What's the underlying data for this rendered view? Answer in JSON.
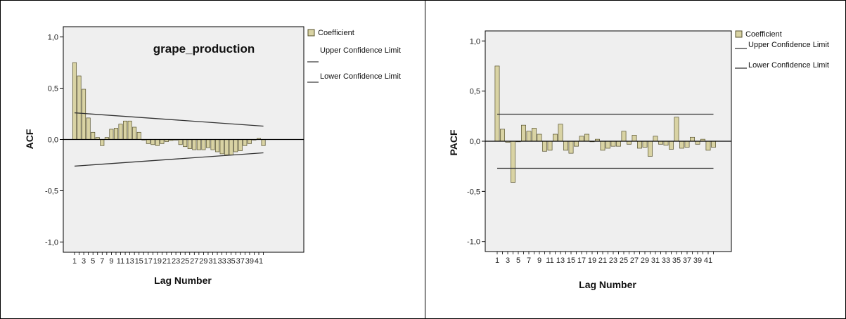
{
  "colors": {
    "bar_fill": "#d9d3a4",
    "bar_stroke": "#55502c",
    "plot_bg": "#efefef",
    "limit_line": "#333333"
  },
  "chart_data": [
    {
      "type": "bar",
      "title": "grape_production",
      "xlabel": "Lag Number",
      "ylabel": "ACF",
      "ylim": [
        -1.1,
        1.1
      ],
      "yticks": [
        "1,0",
        "0,5",
        "0,0",
        "-0,5",
        "-1,0"
      ],
      "x_tick_labels": [
        "1",
        "3",
        "5",
        "7",
        "9",
        "11",
        "13",
        "15",
        "17",
        "19",
        "21",
        "23",
        "25",
        "27",
        "29",
        "31",
        "33",
        "35",
        "37",
        "39",
        "41"
      ],
      "legend": {
        "coefficient": "Coefficient",
        "upper": "Upper Confidence Limit",
        "lower": "Lower Confidence Limit",
        "placement": "right"
      },
      "lags": [
        1,
        2,
        3,
        4,
        5,
        6,
        7,
        8,
        9,
        10,
        11,
        12,
        13,
        14,
        15,
        16,
        17,
        18,
        19,
        20,
        21,
        22,
        23,
        24,
        25,
        26,
        27,
        28,
        29,
        30,
        31,
        32,
        33,
        34,
        35,
        36,
        37,
        38,
        39,
        40,
        41,
        42
      ],
      "values": [
        0.75,
        0.62,
        0.49,
        0.21,
        0.07,
        0.02,
        -0.06,
        0.02,
        0.1,
        0.11,
        0.15,
        0.18,
        0.18,
        0.12,
        0.07,
        0.0,
        -0.04,
        -0.05,
        -0.06,
        -0.04,
        -0.02,
        -0.01,
        0.0,
        -0.05,
        -0.07,
        -0.09,
        -0.1,
        -0.1,
        -0.1,
        -0.08,
        -0.1,
        -0.12,
        -0.14,
        -0.15,
        -0.15,
        -0.12,
        -0.11,
        -0.06,
        -0.04,
        0.0,
        0.01,
        -0.06
      ],
      "upper_limit": [
        0.26,
        0.13
      ],
      "lower_limit": [
        -0.26,
        -0.13
      ]
    },
    {
      "type": "bar",
      "title": "",
      "xlabel": "Lag Number",
      "ylabel": "PACF",
      "ylim": [
        -1.1,
        1.1
      ],
      "yticks": [
        "1,0",
        "0,5",
        "0,0",
        "-0,5",
        "-1,0"
      ],
      "x_tick_labels": [
        "1",
        "3",
        "5",
        "7",
        "9",
        "11",
        "13",
        "15",
        "17",
        "19",
        "21",
        "23",
        "25",
        "27",
        "29",
        "31",
        "33",
        "35",
        "37",
        "39",
        "41"
      ],
      "legend": {
        "coefficient": "Coefficient",
        "upper": "Upper Confidence Limit",
        "lower": "Lower Confidence Limit",
        "placement": "right"
      },
      "lags": [
        1,
        2,
        3,
        4,
        5,
        6,
        7,
        8,
        9,
        10,
        11,
        12,
        13,
        14,
        15,
        16,
        17,
        18,
        19,
        20,
        21,
        22,
        23,
        24,
        25,
        26,
        27,
        28,
        29,
        30,
        31,
        32,
        33,
        34,
        35,
        36,
        37,
        38,
        39,
        40,
        41,
        42
      ],
      "values": [
        0.75,
        0.12,
        -0.01,
        -0.41,
        0.0,
        0.16,
        0.1,
        0.13,
        0.07,
        -0.1,
        -0.09,
        0.07,
        0.17,
        -0.09,
        -0.12,
        -0.05,
        0.05,
        0.07,
        0.0,
        0.02,
        -0.09,
        -0.07,
        -0.05,
        -0.05,
        0.1,
        -0.03,
        0.06,
        -0.07,
        -0.06,
        -0.15,
        0.05,
        -0.03,
        -0.04,
        -0.08,
        0.24,
        -0.07,
        -0.06,
        0.04,
        -0.03,
        0.02,
        -0.09,
        -0.06
      ],
      "upper_limit": [
        0.27,
        0.27
      ],
      "lower_limit": [
        -0.27,
        -0.27
      ]
    }
  ]
}
